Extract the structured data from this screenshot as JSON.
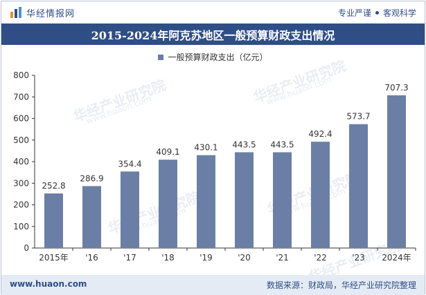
{
  "header": {
    "brand": "华经情报网",
    "tag1": "专业严谨",
    "tag2": "客观科学"
  },
  "watermark": {
    "text": "华经产业研究院",
    "url": "www.huaon.com"
  },
  "footer": {
    "url": "www.huaon.com",
    "source": "数据来源：财政局，华经产业研究院整理"
  },
  "chart_data": {
    "type": "bar",
    "title": "2015-2024年阿克苏地区一般预算财政支出情况",
    "series": [
      {
        "name": "一般预算财政支出（亿元）",
        "values": [
          252.8,
          286.9,
          354.4,
          409.1,
          430.1,
          443.5,
          443.5,
          492.4,
          573.7,
          707.3
        ]
      }
    ],
    "categories": [
      "2015年",
      "'16",
      "'17",
      "'18",
      "'19",
      "'20",
      "'21",
      "'22",
      "'23",
      "2024年"
    ],
    "data_labels": [
      "252.8",
      "286.9",
      "354.4",
      "409.1",
      "430.1",
      "443.5",
      "443.5",
      "492.4",
      "573.7",
      "707.3"
    ],
    "ylim": [
      0,
      800
    ],
    "yticks": [
      "0",
      "100",
      "200",
      "300",
      "400",
      "500",
      "600",
      "700",
      "800"
    ],
    "grid": false,
    "legend": "top-center",
    "bar_color": "#6b7fa6"
  }
}
